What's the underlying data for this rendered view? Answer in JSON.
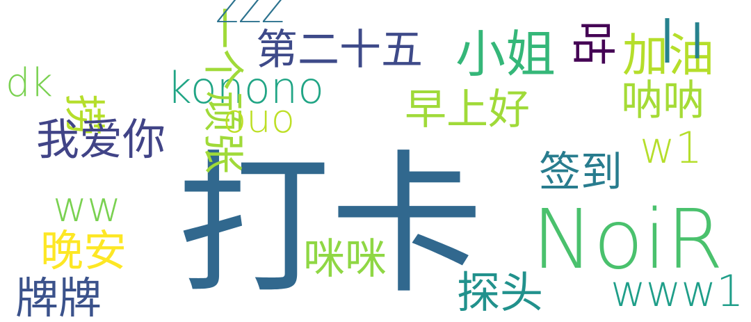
{
  "words": [
    {
      "text": "打卡",
      "color": "#31688e"
    },
    {
      "text": "NoiR",
      "color": "#4ac16d"
    },
    {
      "text": "小姐",
      "color": "#35b779"
    },
    {
      "text": "konono",
      "color": "#21a585"
    },
    {
      "text": "第二十五",
      "color": "#3e4a89"
    },
    {
      "text": "一个顽张",
      "color": "#a0da39"
    },
    {
      "text": "ZZZ",
      "color": "#2c728e"
    },
    {
      "text": "dk",
      "color": "#7ad151"
    },
    {
      "text": "捞",
      "color": "#b5de2b"
    },
    {
      "text": "咕",
      "color": "#440154"
    },
    {
      "text": "加油",
      "color": "#b5de2b"
    },
    {
      "text": "二",
      "color": "#26828e"
    },
    {
      "text": "ouo",
      "color": "#bddf26"
    },
    {
      "text": "早上好",
      "color": "#a0da39"
    },
    {
      "text": "呐呐",
      "color": "#a5db36"
    },
    {
      "text": "我爱你",
      "color": "#414487"
    },
    {
      "text": "w1",
      "color": "#b5de2b"
    },
    {
      "text": "签到",
      "color": "#287c8e"
    },
    {
      "text": "ww",
      "color": "#7ad151"
    },
    {
      "text": "晚安",
      "color": "#fde725"
    },
    {
      "text": "咪咪",
      "color": "#8fd744"
    },
    {
      "text": "牌牌",
      "color": "#3b528b"
    },
    {
      "text": "探头",
      "color": "#21918c"
    },
    {
      "text": "www1",
      "color": "#1f9e89"
    }
  ]
}
